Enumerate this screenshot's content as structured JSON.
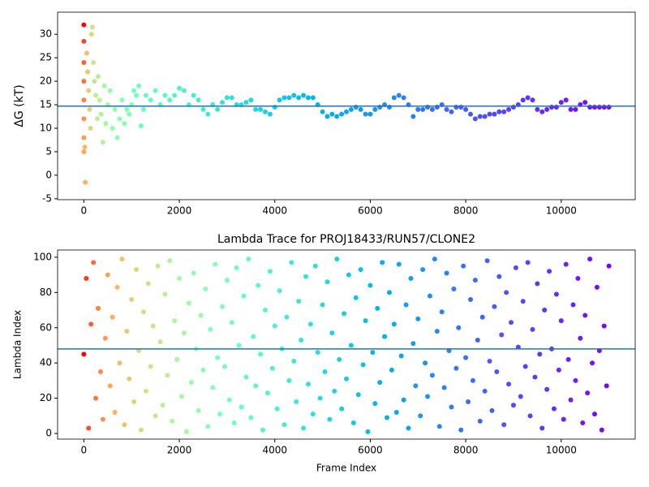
{
  "chart_data": [
    {
      "type": "scatter",
      "ylabel": "ΔG (kT)",
      "colormap": "rainbow_r",
      "hline": 14.7,
      "hline_color": "#1f77b4",
      "xlim": [
        -550,
        11550
      ],
      "ylim": [
        -5.2,
        34.7
      ],
      "xticks": [
        0,
        2000,
        4000,
        6000,
        8000,
        10000
      ],
      "yticks": [
        -5,
        0,
        5,
        10,
        15,
        20,
        25,
        30
      ],
      "x": [
        0,
        0,
        0,
        0,
        0,
        0,
        0,
        0,
        30,
        20,
        60,
        80,
        100,
        120,
        140,
        160,
        180,
        200,
        220,
        250,
        280,
        300,
        330,
        360,
        400,
        430,
        460,
        500,
        550,
        600,
        650,
        700,
        750,
        800,
        850,
        900,
        950,
        1000,
        1050,
        1100,
        1150,
        1200,
        1250,
        1300,
        1400,
        1500,
        1600,
        1700,
        1800,
        1900,
        2000,
        2100,
        2200,
        2300,
        2400,
        2500,
        2600,
        2700,
        2800,
        2900,
        3000,
        3100,
        3200,
        3300,
        3400,
        3500,
        3600,
        3700,
        3800,
        3900,
        4000,
        4100,
        4200,
        4300,
        4400,
        4500,
        4600,
        4700,
        4800,
        4900,
        5000,
        5100,
        5200,
        5300,
        5400,
        5500,
        5600,
        5700,
        5800,
        5900,
        6000,
        6100,
        6200,
        6300,
        6400,
        6500,
        6600,
        6700,
        6800,
        6900,
        7000,
        7100,
        7200,
        7300,
        7400,
        7500,
        7600,
        7700,
        7800,
        7900,
        8000,
        8100,
        8200,
        8300,
        8400,
        8500,
        8600,
        8700,
        8800,
        8900,
        9000,
        9100,
        9200,
        9300,
        9400,
        9500,
        9600,
        9700,
        9800,
        9900,
        10000,
        10100,
        10200,
        10300,
        10400,
        10500,
        10600,
        10700,
        10800,
        10900,
        11000
      ],
      "values": [
        32,
        28.5,
        24,
        20,
        16,
        12,
        8,
        5,
        -1.5,
        6,
        26,
        22,
        18,
        14,
        10,
        30,
        31.5,
        24,
        20,
        17,
        12,
        21,
        16,
        13,
        7,
        19,
        11,
        15,
        18,
        10,
        14,
        8,
        12,
        16,
        11,
        14,
        13,
        15,
        18,
        17,
        19,
        10.5,
        14,
        17,
        16,
        18,
        15,
        17,
        16,
        17,
        18.5,
        18,
        15,
        17,
        16,
        14,
        13,
        15,
        14,
        15.5,
        16.5,
        16.5,
        15,
        15,
        15.5,
        16,
        14,
        14,
        13.5,
        13,
        14.5,
        16,
        16.5,
        16.5,
        17,
        16.5,
        17,
        16.5,
        16.5,
        15,
        13.5,
        12.5,
        13,
        12.5,
        13,
        13.5,
        14,
        14.5,
        14,
        13,
        13,
        14,
        14.5,
        15,
        14.5,
        16.5,
        17,
        16.5,
        15,
        12.5,
        14,
        14,
        14.5,
        14,
        14.5,
        15,
        14,
        13.5,
        14.5,
        14.5,
        14,
        13,
        12,
        12.5,
        12.5,
        13,
        13,
        13.5,
        13.5,
        14,
        14.5,
        15,
        16,
        16.5,
        16,
        14,
        13.5,
        14,
        14.5,
        14.5,
        15.5,
        16,
        14,
        14,
        15,
        15.5,
        14.5,
        14.5,
        14.5,
        14.5,
        14.5
      ]
    },
    {
      "type": "scatter",
      "title": "Lambda Trace for PROJ18433/RUN57/CLONE2",
      "xlabel": "Frame Index",
      "ylabel": "Lambda Index",
      "colormap": "rainbow_r",
      "hline": 48,
      "hline_color": "#1f77b4",
      "xlim": [
        -550,
        11550
      ],
      "ylim": [
        -3.2,
        104.1
      ],
      "xticks": [
        0,
        2000,
        4000,
        6000,
        8000,
        10000
      ],
      "yticks": [
        0,
        20,
        40,
        60,
        80,
        100
      ],
      "x": [
        0,
        50,
        100,
        150,
        200,
        250,
        300,
        350,
        400,
        450,
        500,
        550,
        600,
        650,
        700,
        750,
        800,
        850,
        900,
        950,
        1000,
        1050,
        1100,
        1150,
        1200,
        1250,
        1300,
        1350,
        1400,
        1450,
        1500,
        1550,
        1600,
        1650,
        1700,
        1750,
        1800,
        1850,
        1900,
        1950,
        2000,
        2050,
        2100,
        2150,
        2200,
        2250,
        2300,
        2350,
        2400,
        2450,
        2500,
        2550,
        2600,
        2650,
        2700,
        2750,
        2800,
        2850,
        2900,
        2950,
        3000,
        3050,
        3100,
        3150,
        3200,
        3250,
        3300,
        3350,
        3400,
        3450,
        3500,
        3550,
        3600,
        3650,
        3700,
        3750,
        3800,
        3850,
        3900,
        3950,
        4000,
        4050,
        4100,
        4150,
        4200,
        4250,
        4300,
        4350,
        4400,
        4450,
        4500,
        4550,
        4600,
        4650,
        4700,
        4750,
        4800,
        4850,
        4900,
        4950,
        5000,
        5050,
        5100,
        5150,
        5200,
        5250,
        5300,
        5350,
        5400,
        5450,
        5500,
        5550,
        5600,
        5650,
        5700,
        5750,
        5800,
        5850,
        5900,
        5950,
        6000,
        6050,
        6100,
        6150,
        6200,
        6250,
        6300,
        6350,
        6400,
        6450,
        6500,
        6550,
        6600,
        6650,
        6700,
        6750,
        6800,
        6850,
        6900,
        6950,
        7000,
        7050,
        7100,
        7150,
        7200,
        7250,
        7300,
        7350,
        7400,
        7450,
        7500,
        7550,
        7600,
        7650,
        7700,
        7750,
        7800,
        7850,
        7900,
        7950,
        8000,
        8050,
        8100,
        8150,
        8200,
        8250,
        8300,
        8350,
        8400,
        8450,
        8500,
        8550,
        8600,
        8650,
        8700,
        8750,
        8800,
        8850,
        8900,
        8950,
        9000,
        9050,
        9100,
        9150,
        9200,
        9250,
        9300,
        9350,
        9400,
        9450,
        9500,
        9550,
        9600,
        9650,
        9700,
        9750,
        9800,
        9850,
        9900,
        9950,
        10000,
        10050,
        10100,
        10150,
        10200,
        10250,
        10300,
        10350,
        10400,
        10450,
        10500,
        10550,
        10600,
        10650,
        10700,
        10750,
        10800,
        10850,
        10900,
        10950,
        11000
      ],
      "values": [
        45,
        88,
        3,
        62,
        97,
        20,
        71,
        35,
        8,
        54,
        90,
        27,
        66,
        12,
        83,
        40,
        99,
        5,
        58,
        31,
        76,
        18,
        93,
        47,
        2,
        69,
        24,
        85,
        38,
        61,
        10,
        95,
        52,
        16,
        79,
        33,
        98,
        7,
        64,
        42,
        88,
        21,
        57,
        1,
        74,
        29,
        91,
        48,
        13,
        67,
        36,
        82,
        4,
        59,
        26,
        96,
        43,
        11,
        72,
        38,
        87,
        19,
        63,
        6,
        94,
        50,
        15,
        78,
        32,
        99,
        9,
        55,
        27,
        84,
        45,
        2,
        70,
        23,
        92,
        37,
        61,
        14,
        81,
        48,
        5,
        66,
        30,
        97,
        41,
        18,
        75,
        53,
        3,
        89,
        28,
        62,
        11,
        95,
        46,
        20,
        73,
        35,
        86,
        8,
        57,
        24,
        99,
        42,
        14,
        68,
        31,
        90,
        50,
        6,
        77,
        22,
        93,
        39,
        64,
        1,
        84,
        46,
        17,
        71,
        29,
        97,
        55,
        9,
        80,
        36,
        62,
        12,
        96,
        44,
        19,
        73,
        3,
        88,
        51,
        27,
        65,
        10,
        93,
        40,
        21,
        78,
        33,
        99,
        58,
        4,
        69,
        26,
        91,
        47,
        15,
        82,
        37,
        60,
        2,
        95,
        43,
        18,
        76,
        30,
        87,
        53,
        7,
        66,
        24,
        98,
        41,
        13,
        72,
        35,
        89,
        56,
        5,
        80,
        28,
        63,
        16,
        94,
        49,
        21,
        75,
        38,
        97,
        10,
        59,
        32,
        85,
        45,
        3,
        70,
        25,
        92,
        48,
        14,
        79,
        36,
        64,
        8,
        96,
        42,
        19,
        73,
        30,
        88,
        54,
        6,
        67,
        23,
        99,
        40,
        11,
        83,
        47,
        2,
        61,
        27,
        95
      ]
    }
  ]
}
